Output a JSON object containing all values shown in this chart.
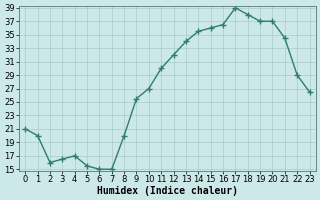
{
  "xlabel": "Humidex (Indice chaleur)",
  "x": [
    0,
    1,
    2,
    3,
    4,
    5,
    6,
    7,
    8,
    9,
    10,
    11,
    12,
    13,
    14,
    15,
    16,
    17,
    18,
    19,
    20,
    21,
    22,
    23
  ],
  "y": [
    21,
    20,
    16,
    16.5,
    17,
    15.5,
    15,
    15,
    20,
    25.5,
    27,
    30,
    32,
    34,
    35.5,
    36,
    36.5,
    39,
    38,
    37,
    37,
    34.5,
    29,
    26.5
  ],
  "line_color": "#2e7d6e",
  "marker": "+",
  "markersize": 4,
  "linewidth": 1.0,
  "bg_color": "#cce8e8",
  "grid_color": "#aacccc",
  "ylim": [
    15,
    39
  ],
  "yticks": [
    15,
    17,
    19,
    21,
    23,
    25,
    27,
    29,
    31,
    33,
    35,
    37,
    39
  ],
  "xticks": [
    0,
    1,
    2,
    3,
    4,
    5,
    6,
    7,
    8,
    9,
    10,
    11,
    12,
    13,
    14,
    15,
    16,
    17,
    18,
    19,
    20,
    21,
    22,
    23
  ],
  "xlabel_fontsize": 7,
  "tick_fontsize": 6,
  "markeredgewidth": 1.0
}
